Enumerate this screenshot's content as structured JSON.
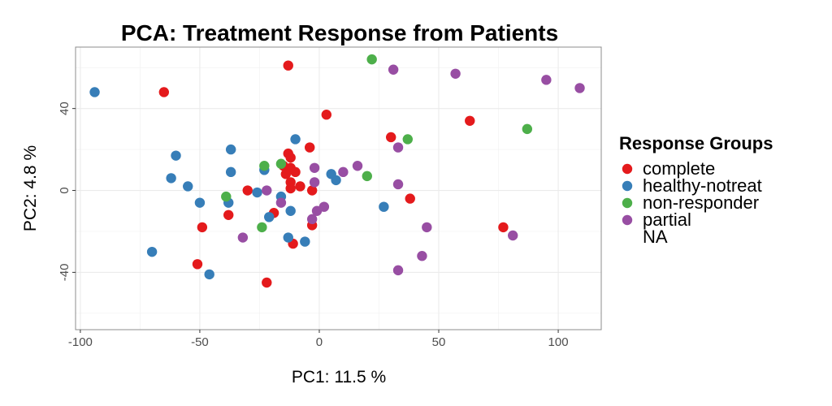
{
  "chart_data": {
    "type": "scatter",
    "title": "PCA: Treatment Response from Patients",
    "xlabel": "PC1: 11.5 %",
    "ylabel": "PC2: 4.8 %",
    "xlim": [
      -102,
      118
    ],
    "ylim": [
      -68,
      70
    ],
    "xticks": [
      -100,
      -50,
      0,
      50,
      100
    ],
    "yticks": [
      -40,
      0,
      40
    ],
    "grid": true,
    "legend": {
      "title": "Response Groups",
      "position": "right",
      "entries": [
        {
          "label": "complete",
          "color": "#e41a1c"
        },
        {
          "label": "healthy-notreat",
          "color": "#377eb8"
        },
        {
          "label": "non-responder",
          "color": "#4daf4a"
        },
        {
          "label": "partial",
          "color": "#984ea3"
        },
        {
          "label": "NA",
          "color": null
        }
      ]
    },
    "series": [
      {
        "name": "complete",
        "color": "#e41a1c",
        "points": [
          [
            -65,
            48
          ],
          [
            -13,
            61
          ],
          [
            3,
            37
          ],
          [
            30,
            26
          ],
          [
            63,
            34
          ],
          [
            -13,
            18
          ],
          [
            -12,
            16
          ],
          [
            -4,
            21
          ],
          [
            -15,
            12
          ],
          [
            -12,
            11
          ],
          [
            -14,
            8
          ],
          [
            -10,
            9
          ],
          [
            -12,
            4
          ],
          [
            -8,
            2
          ],
          [
            -12,
            1
          ],
          [
            -3,
            0
          ],
          [
            -30,
            0
          ],
          [
            -19,
            -11
          ],
          [
            -38,
            -12
          ],
          [
            -49,
            -18
          ],
          [
            -3,
            -17
          ],
          [
            -11,
            -26
          ],
          [
            -51,
            -36
          ],
          [
            -22,
            -45
          ],
          [
            38,
            -4
          ],
          [
            77,
            -18
          ]
        ]
      },
      {
        "name": "healthy-notreat",
        "color": "#377eb8",
        "points": [
          [
            -94,
            48
          ],
          [
            -60,
            17
          ],
          [
            -37,
            20
          ],
          [
            -62,
            6
          ],
          [
            -37,
            9
          ],
          [
            -55,
            2
          ],
          [
            -50,
            -6
          ],
          [
            -38,
            -6
          ],
          [
            -26,
            -1
          ],
          [
            -23,
            10
          ],
          [
            -10,
            25
          ],
          [
            -16,
            -3
          ],
          [
            -12,
            -10
          ],
          [
            -21,
            -13
          ],
          [
            -13,
            -23
          ],
          [
            -6,
            -25
          ],
          [
            -46,
            -41
          ],
          [
            -70,
            -30
          ],
          [
            5,
            8
          ],
          [
            7,
            5
          ],
          [
            27,
            -8
          ]
        ]
      },
      {
        "name": "non-responder",
        "color": "#4daf4a",
        "points": [
          [
            22,
            64
          ],
          [
            37,
            25
          ],
          [
            87,
            30
          ],
          [
            20,
            7
          ],
          [
            -23,
            12
          ],
          [
            -16,
            13
          ],
          [
            -39,
            -3
          ],
          [
            -24,
            -18
          ]
        ]
      },
      {
        "name": "partial",
        "color": "#984ea3",
        "points": [
          [
            31,
            59
          ],
          [
            57,
            57
          ],
          [
            95,
            54
          ],
          [
            109,
            50
          ],
          [
            33,
            21
          ],
          [
            16,
            12
          ],
          [
            10,
            9
          ],
          [
            -2,
            11
          ],
          [
            -2,
            4
          ],
          [
            33,
            3
          ],
          [
            -22,
            0
          ],
          [
            -16,
            -6
          ],
          [
            2,
            -8
          ],
          [
            -1,
            -10
          ],
          [
            -3,
            -14
          ],
          [
            45,
            -18
          ],
          [
            81,
            -22
          ],
          [
            43,
            -32
          ],
          [
            33,
            -39
          ],
          [
            -32,
            -23
          ]
        ]
      }
    ]
  }
}
